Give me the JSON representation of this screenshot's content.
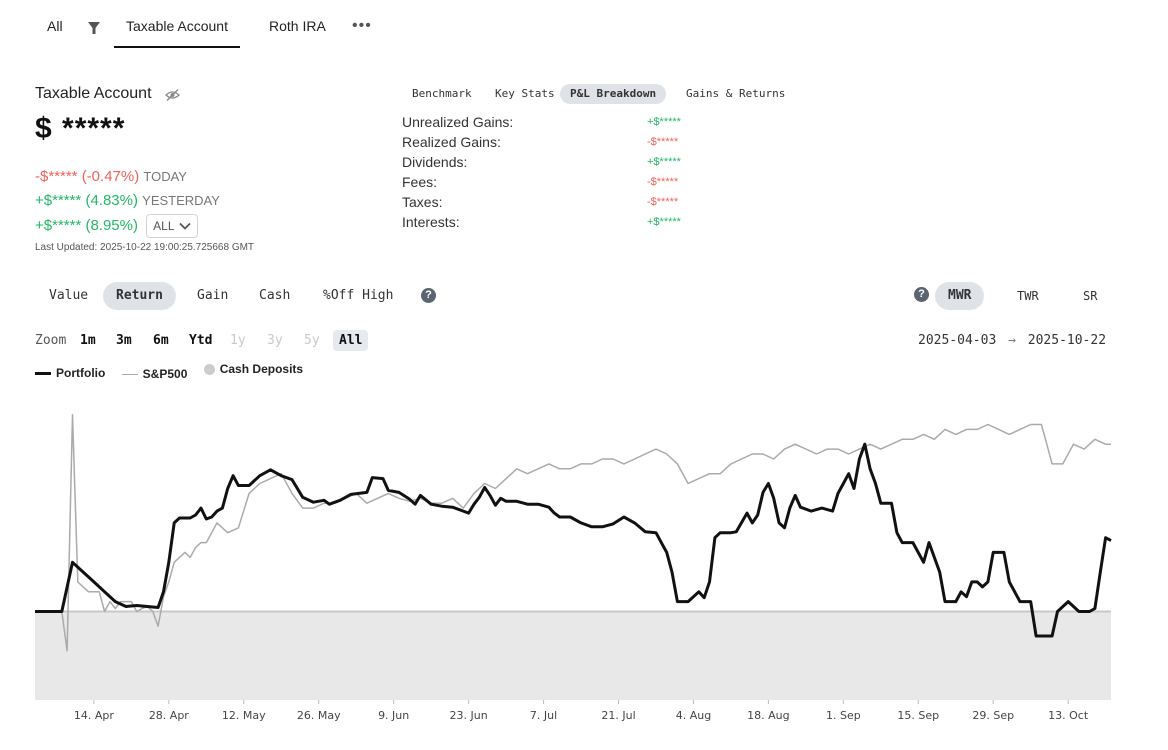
{
  "top_tabs": {
    "all_label": "All",
    "tabs": [
      {
        "label": "Taxable Account",
        "active": true
      },
      {
        "label": "Roth IRA",
        "active": false
      }
    ],
    "more_label": "•••"
  },
  "account": {
    "title": "Taxable Account",
    "balance": "$ *****",
    "changes": [
      {
        "value": "-$***** (-0.47%)",
        "label": "TODAY",
        "color": "#f0625a"
      },
      {
        "value": "+$***** (4.83%)",
        "label": "YESTERDAY",
        "color": "#22b866"
      },
      {
        "value": "+$***** (8.95%)",
        "label": "",
        "color": "#22b866"
      }
    ],
    "period_select": "ALL",
    "last_updated": "Last Updated: 2025-10-22 19:00:25.725668 GMT"
  },
  "breakdown": {
    "tabs": [
      "Benchmark",
      "Key Stats",
      "P&L Breakdown",
      "Gains & Returns"
    ],
    "active_tab": "P&L Breakdown",
    "rows": [
      {
        "label": "Unrealized Gains:",
        "value": "+$*****",
        "color": "#22b866"
      },
      {
        "label": "Realized Gains:",
        "value": "-$*****",
        "color": "#f0625a"
      },
      {
        "label": "Dividends:",
        "value": "+$*****",
        "color": "#22b866"
      },
      {
        "label": "Fees:",
        "value": "-$*****",
        "color": "#f0625a"
      },
      {
        "label": "Taxes:",
        "value": "-$*****",
        "color": "#f0625a"
      },
      {
        "label": "Interests:",
        "value": "+$*****",
        "color": "#22b866"
      }
    ]
  },
  "mode_tabs": {
    "left": [
      "Value",
      "Return",
      "Gain",
      "Cash",
      "%Off High"
    ],
    "left_active": "Return",
    "right": [
      "MWR",
      "TWR",
      "SR"
    ],
    "right_active": "MWR",
    "help_label": "?"
  },
  "zoom": {
    "label": "Zoom",
    "options": [
      {
        "label": "1m",
        "enabled": true
      },
      {
        "label": "3m",
        "enabled": true
      },
      {
        "label": "6m",
        "enabled": true
      },
      {
        "label": "Ytd",
        "enabled": true
      },
      {
        "label": "1y",
        "enabled": false
      },
      {
        "label": "3y",
        "enabled": false
      },
      {
        "label": "5y",
        "enabled": false
      },
      {
        "label": "All",
        "enabled": true,
        "active": true
      }
    ],
    "start_date": "2025-04-03",
    "arrow": "→",
    "end_date": "2025-10-22"
  },
  "legend": [
    {
      "label": "Portfolio",
      "type": "line"
    },
    {
      "label": "S&P500",
      "type": "thin-line"
    },
    {
      "label": "Cash Deposits",
      "type": "dot"
    }
  ],
  "chart_data": {
    "type": "line",
    "x_ticks": [
      "14. Apr",
      "28. Apr",
      "12. May",
      "26. May",
      "9. Jun",
      "23. Jun",
      "7. Jul",
      "21. Jul",
      "4. Aug",
      "18. Aug",
      "1. Sep",
      "15. Sep",
      "29. Sep",
      "13. Oct"
    ],
    "x_tick_day_index": [
      11,
      25,
      39,
      53,
      67,
      81,
      95,
      109,
      123,
      137,
      151,
      165,
      179,
      193
    ],
    "total_days": 202,
    "baseline": 0,
    "ylim": [
      -9,
      22
    ],
    "colors": {
      "portfolio": "#111111",
      "sp500": "#aaaaaa",
      "cash": "#e8e8e8",
      "baseline": "#c8c8c8"
    },
    "series": [
      {
        "name": "Portfolio",
        "points": [
          [
            0,
            0
          ],
          [
            5,
            0
          ],
          [
            7,
            5
          ],
          [
            9,
            4
          ],
          [
            11,
            3
          ],
          [
            13,
            2
          ],
          [
            15,
            1
          ],
          [
            17,
            0.5
          ],
          [
            19,
            0.6
          ],
          [
            21,
            0.5
          ],
          [
            23,
            0.4
          ],
          [
            24,
            2
          ],
          [
            25,
            5
          ],
          [
            26,
            9
          ],
          [
            27,
            9.5
          ],
          [
            29,
            9.5
          ],
          [
            30,
            9.8
          ],
          [
            31,
            10.5
          ],
          [
            32,
            9.4
          ],
          [
            33,
            9.6
          ],
          [
            34,
            10.2
          ],
          [
            35,
            10.5
          ],
          [
            36,
            12.5
          ],
          [
            37,
            13.8
          ],
          [
            38,
            12.8
          ],
          [
            40,
            12.8
          ],
          [
            42,
            13.8
          ],
          [
            44,
            14.4
          ],
          [
            46,
            13.8
          ],
          [
            48,
            13.4
          ],
          [
            50,
            11.6
          ],
          [
            52,
            11.1
          ],
          [
            54,
            11.3
          ],
          [
            55,
            10.9
          ],
          [
            57,
            11.3
          ],
          [
            59,
            11.9
          ],
          [
            62,
            12.1
          ],
          [
            63,
            13.6
          ],
          [
            65,
            13.5
          ],
          [
            66,
            12.3
          ],
          [
            68,
            12.1
          ],
          [
            70,
            11.4
          ],
          [
            71,
            10.9
          ],
          [
            72,
            11.8
          ],
          [
            74,
            10.9
          ],
          [
            76,
            10.7
          ],
          [
            78,
            10.6
          ],
          [
            80,
            10.2
          ],
          [
            81,
            10.0
          ],
          [
            82,
            10.9
          ],
          [
            83,
            11.6
          ],
          [
            84,
            12.6
          ],
          [
            85,
            11.8
          ],
          [
            86,
            10.8
          ],
          [
            87,
            11.5
          ],
          [
            88,
            11.2
          ],
          [
            90,
            11.2
          ],
          [
            92,
            10.9
          ],
          [
            94,
            10.9
          ],
          [
            96,
            10.6
          ],
          [
            97,
            10.0
          ],
          [
            98,
            9.6
          ],
          [
            100,
            9.6
          ],
          [
            102,
            9.0
          ],
          [
            104,
            8.6
          ],
          [
            106,
            8.6
          ],
          [
            108,
            8.9
          ],
          [
            110,
            9.6
          ],
          [
            112,
            9.0
          ],
          [
            114,
            8.1
          ],
          [
            116,
            8.0
          ],
          [
            117,
            7.0
          ],
          [
            118,
            6.0
          ],
          [
            119,
            4.0
          ],
          [
            120,
            1.0
          ],
          [
            122,
            1.0
          ],
          [
            124,
            2.0
          ],
          [
            125,
            1.4
          ],
          [
            126,
            3.0
          ],
          [
            127,
            7.5
          ],
          [
            128,
            8.0
          ],
          [
            130,
            8.0
          ],
          [
            131,
            8.1
          ],
          [
            133,
            10.0
          ],
          [
            134,
            9.0
          ],
          [
            135,
            9.8
          ],
          [
            136,
            12.1
          ],
          [
            137,
            13.0
          ],
          [
            138,
            11.5
          ],
          [
            139,
            9.0
          ],
          [
            140,
            8.5
          ],
          [
            141,
            10.5
          ],
          [
            142,
            11.8
          ],
          [
            143,
            10.6
          ],
          [
            145,
            10.2
          ],
          [
            147,
            10.5
          ],
          [
            149,
            10.2
          ],
          [
            150,
            12.0
          ],
          [
            152,
            14.0
          ],
          [
            153,
            12.5
          ],
          [
            154,
            15.5
          ],
          [
            155,
            17.0
          ],
          [
            156,
            14.5
          ],
          [
            157,
            13.0
          ],
          [
            158,
            11.0
          ],
          [
            160,
            11.0
          ],
          [
            161,
            8.0
          ],
          [
            162,
            7.0
          ],
          [
            163,
            7.0
          ],
          [
            164,
            7.0
          ],
          [
            166,
            5.0
          ],
          [
            167,
            7.0
          ],
          [
            169,
            4.0
          ],
          [
            170,
            1.0
          ],
          [
            172,
            1.0
          ],
          [
            173,
            2.0
          ],
          [
            174,
            1.5
          ],
          [
            175,
            3.0
          ],
          [
            176,
            3.0
          ],
          [
            177,
            2.5
          ],
          [
            178,
            3.0
          ],
          [
            179,
            6.0
          ],
          [
            181,
            6.0
          ],
          [
            182,
            3.0
          ],
          [
            184,
            1.0
          ],
          [
            186,
            1.0
          ],
          [
            187,
            -2.5
          ],
          [
            190,
            -2.5
          ],
          [
            191,
            0.0
          ],
          [
            193,
            1.0
          ],
          [
            194,
            0.5
          ],
          [
            195,
            0.0
          ],
          [
            197,
            0.0
          ],
          [
            198,
            0.3
          ],
          [
            199,
            4.0
          ],
          [
            200,
            7.5
          ],
          [
            201,
            7.2
          ]
        ]
      },
      {
        "name": "S&P500",
        "points": [
          [
            0,
            0
          ],
          [
            5,
            0
          ],
          [
            6,
            -4
          ],
          [
            7,
            20
          ],
          [
            8,
            3
          ],
          [
            10,
            2
          ],
          [
            12,
            2
          ],
          [
            13,
            0
          ],
          [
            14,
            1
          ],
          [
            15,
            0.3
          ],
          [
            16,
            1.0
          ],
          [
            18,
            1.0
          ],
          [
            19,
            0.0
          ],
          [
            20,
            0.3
          ],
          [
            21,
            0.5
          ],
          [
            22,
            0.0
          ],
          [
            23,
            -1.5
          ],
          [
            24,
            1.5
          ],
          [
            25,
            3
          ],
          [
            26,
            5
          ],
          [
            28,
            6
          ],
          [
            29,
            5.5
          ],
          [
            30,
            6.5
          ],
          [
            31,
            7
          ],
          [
            32,
            7
          ],
          [
            33,
            8
          ],
          [
            34,
            9
          ],
          [
            36,
            8
          ],
          [
            38,
            8.5
          ],
          [
            40,
            12
          ],
          [
            42,
            13
          ],
          [
            44,
            13.5
          ],
          [
            46,
            14
          ],
          [
            48,
            12
          ],
          [
            50,
            10.5
          ],
          [
            52,
            10.5
          ],
          [
            54,
            11
          ],
          [
            56,
            11
          ],
          [
            58,
            11.5
          ],
          [
            60,
            12
          ],
          [
            62,
            11
          ],
          [
            64,
            11.5
          ],
          [
            66,
            12
          ],
          [
            68,
            11.5
          ],
          [
            70,
            11.2
          ],
          [
            72,
            11.5
          ],
          [
            74,
            11
          ],
          [
            76,
            11
          ],
          [
            78,
            11.5
          ],
          [
            80,
            10.5
          ],
          [
            82,
            12
          ],
          [
            84,
            13
          ],
          [
            86,
            12.5
          ],
          [
            88,
            13.5
          ],
          [
            90,
            14.5
          ],
          [
            92,
            14.0
          ],
          [
            94,
            14.5
          ],
          [
            96,
            15.0
          ],
          [
            98,
            14.5
          ],
          [
            100,
            14.5
          ],
          [
            102,
            15
          ],
          [
            104,
            15.0
          ],
          [
            106,
            15.5
          ],
          [
            108,
            15.5
          ],
          [
            110,
            15
          ],
          [
            112,
            15.5
          ],
          [
            114,
            16
          ],
          [
            116,
            16.5
          ],
          [
            118,
            16
          ],
          [
            120,
            15
          ],
          [
            122,
            13
          ],
          [
            124,
            13.5
          ],
          [
            126,
            14
          ],
          [
            128,
            14
          ],
          [
            130,
            15
          ],
          [
            132,
            15.5
          ],
          [
            134,
            16
          ],
          [
            136,
            16
          ],
          [
            138,
            15.5
          ],
          [
            140,
            16.5
          ],
          [
            142,
            17
          ],
          [
            144,
            16.5
          ],
          [
            146,
            16
          ],
          [
            148,
            16.5
          ],
          [
            150,
            16.5
          ],
          [
            152,
            16
          ],
          [
            154,
            16.5
          ],
          [
            156,
            17
          ],
          [
            158,
            16.5
          ],
          [
            160,
            17
          ],
          [
            162,
            17.5
          ],
          [
            164,
            17.5
          ],
          [
            166,
            18
          ],
          [
            168,
            17.5
          ],
          [
            170,
            18.5
          ],
          [
            172,
            18
          ],
          [
            174,
            18.5
          ],
          [
            176,
            18.5
          ],
          [
            178,
            19
          ],
          [
            180,
            18.5
          ],
          [
            182,
            18
          ],
          [
            184,
            18.5
          ],
          [
            186,
            19
          ],
          [
            188,
            19
          ],
          [
            189,
            17
          ],
          [
            190,
            15
          ],
          [
            192,
            15
          ],
          [
            194,
            17
          ],
          [
            196,
            16.5
          ],
          [
            198,
            17.5
          ],
          [
            200,
            17
          ],
          [
            201,
            17
          ]
        ]
      }
    ]
  }
}
